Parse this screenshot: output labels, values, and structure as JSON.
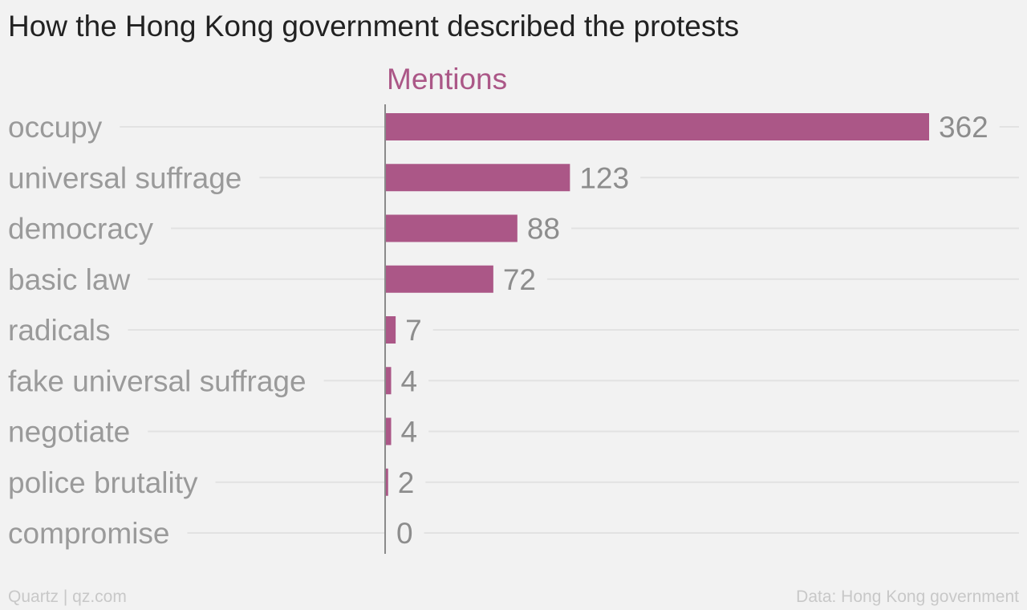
{
  "title": "How the Hong Kong government described the protests",
  "footer": {
    "left": "Quartz | qz.com",
    "right": "Data: Hong Kong government"
  },
  "colors": {
    "bar": "#ab5787",
    "label": "#9a9a9a",
    "value": "#8d8d8d",
    "grid": "#e2e2e2",
    "axis": "#8a8a8a"
  },
  "chart_data": {
    "type": "bar",
    "orientation": "horizontal",
    "series_name": "Mentions",
    "categories": [
      "occupy",
      "universal suffrage",
      "democracy",
      "basic law",
      "radicals",
      "fake universal suffrage",
      "negotiate",
      "police brutality",
      "compromise"
    ],
    "values": [
      362,
      123,
      88,
      72,
      7,
      4,
      4,
      2,
      0
    ],
    "xlim": [
      0,
      362
    ],
    "grid": true,
    "data_labels": true
  }
}
